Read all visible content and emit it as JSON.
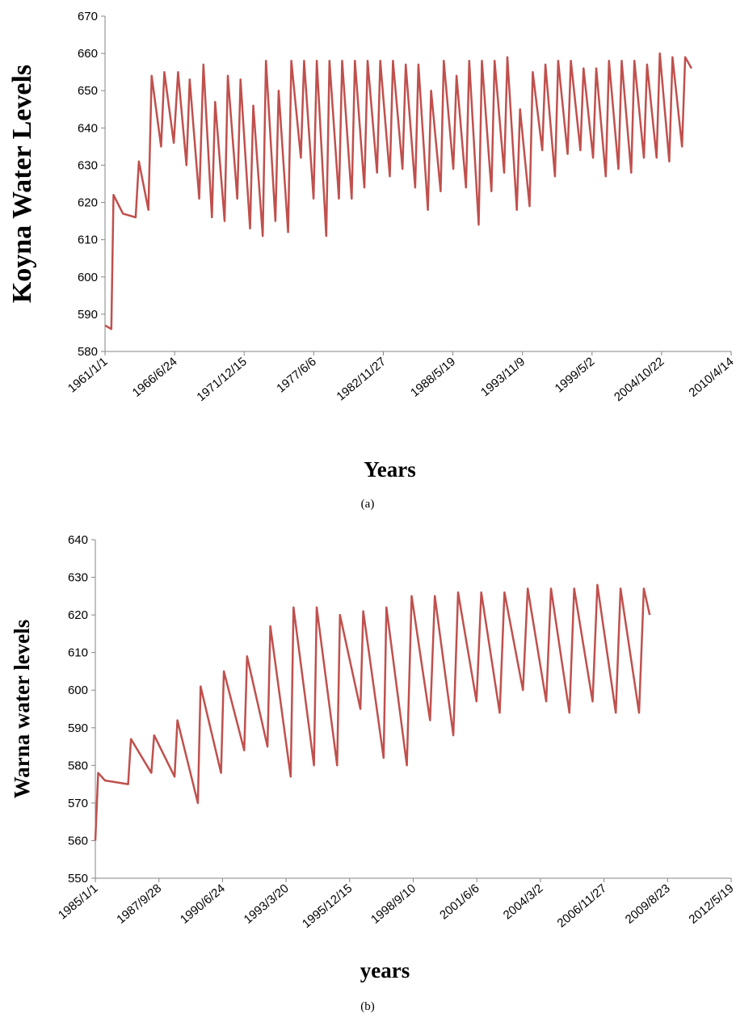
{
  "chart_data": [
    {
      "type": "line",
      "y_label": "Koyna Water Levels",
      "x_label": "Years",
      "caption": "(a)",
      "color": "#c0504d",
      "xlim": [
        "1961/1/1",
        "2010/4/14"
      ],
      "xticks": [
        "1961/1/1",
        "1966/6/24",
        "1971/12/15",
        "1977/6/6",
        "1982/11/27",
        "1988/5/19",
        "1993/11/9",
        "1999/5/2",
        "2004/10/22",
        "2010/4/14"
      ],
      "ylim": [
        580,
        670
      ],
      "yticks": [
        580,
        590,
        600,
        610,
        620,
        630,
        640,
        650,
        660,
        670
      ],
      "x": [
        "1961/1/1",
        "1961/7/1",
        "1961/9/1",
        "1962/6/1",
        "1963/6/1",
        "1963/9/1",
        "1964/6/1",
        "1964/9/1",
        "1965/6/1",
        "1965/9/1",
        "1966/6/1",
        "1966/10/1",
        "1967/6/1",
        "1967/9/1",
        "1968/6/1",
        "1968/10/1",
        "1969/6/1",
        "1969/9/1",
        "1970/6/1",
        "1970/9/1",
        "1971/6/1",
        "1971/9/1",
        "1972/6/1",
        "1972/9/1",
        "1973/6/1",
        "1973/9/1",
        "1974/6/1",
        "1974/9/1",
        "1975/6/1",
        "1975/9/1",
        "1976/6/1",
        "1976/9/1",
        "1977/6/1",
        "1977/9/1",
        "1978/6/1",
        "1978/9/1",
        "1979/6/1",
        "1979/9/1",
        "1980/6/1",
        "1980/9/1",
        "1981/6/1",
        "1981/9/1",
        "1982/6/1",
        "1982/9/1",
        "1983/6/1",
        "1983/9/1",
        "1984/6/1",
        "1984/9/1",
        "1985/6/1",
        "1985/9/1",
        "1986/6/1",
        "1986/9/1",
        "1987/6/1",
        "1987/9/1",
        "1988/6/1",
        "1988/9/1",
        "1989/6/1",
        "1989/9/1",
        "1990/6/1",
        "1990/9/1",
        "1991/6/1",
        "1991/9/1",
        "1992/6/1",
        "1992/9/1",
        "1993/6/1",
        "1993/9/1",
        "1994/6/1",
        "1994/9/1",
        "1995/6/1",
        "1995/9/1",
        "1996/6/1",
        "1996/9/1",
        "1997/6/1",
        "1997/9/1",
        "1998/6/1",
        "1998/9/1",
        "1999/6/1",
        "1999/9/1",
        "2000/6/1",
        "2000/9/1",
        "2001/6/1",
        "2001/9/1",
        "2002/6/1",
        "2002/9/1",
        "2003/6/1",
        "2003/9/1",
        "2004/6/1",
        "2004/9/1",
        "2005/6/1",
        "2005/9/1",
        "2006/6/1",
        "2006/9/1",
        "2007/3/1"
      ],
      "values": [
        587,
        586,
        622,
        617,
        616,
        631,
        618,
        654,
        635,
        655,
        636,
        655,
        630,
        653,
        621,
        657,
        616,
        647,
        615,
        654,
        621,
        653,
        613,
        646,
        611,
        658,
        615,
        650,
        612,
        658,
        632,
        658,
        621,
        658,
        611,
        658,
        621,
        658,
        621,
        658,
        624,
        658,
        628,
        658,
        627,
        658,
        629,
        657,
        624,
        657,
        618,
        650,
        623,
        658,
        629,
        654,
        624,
        658,
        614,
        658,
        623,
        658,
        628,
        659,
        618,
        645,
        619,
        655,
        634,
        657,
        627,
        658,
        633,
        658,
        634,
        656,
        632,
        656,
        627,
        658,
        629,
        658,
        628,
        658,
        632,
        657,
        632,
        660,
        631,
        659,
        635,
        659,
        656
      ]
    },
    {
      "type": "line",
      "y_label": "Warna water levels",
      "x_label": "years",
      "caption": "(b)",
      "color": "#c0504d",
      "xlim": [
        "1985/1/1",
        "2012/5/19"
      ],
      "xticks": [
        "1985/1/1",
        "1987/9/28",
        "1990/6/24",
        "1993/3/20",
        "1995/12/15",
        "1998/9/10",
        "2001/6/6",
        "2004/3/2",
        "2006/11/27",
        "2009/8/23",
        "2012/5/19"
      ],
      "ylim": [
        550,
        640
      ],
      "yticks": [
        550,
        560,
        570,
        580,
        590,
        600,
        610,
        620,
        630,
        640
      ],
      "x": [
        "1985/1/1",
        "1985/2/15",
        "1985/6/1",
        "1986/6/1",
        "1986/7/15",
        "1987/6/1",
        "1987/7/15",
        "1988/6/1",
        "1988/7/15",
        "1989/6/1",
        "1989/7/15",
        "1990/6/1",
        "1990/7/15",
        "1991/6/1",
        "1991/7/15",
        "1992/6/1",
        "1992/7/15",
        "1993/6/1",
        "1993/7/15",
        "1994/6/1",
        "1994/7/15",
        "1995/6/1",
        "1995/7/15",
        "1996/6/1",
        "1996/7/15",
        "1997/6/1",
        "1997/7/15",
        "1998/6/1",
        "1998/8/15",
        "1999/6/1",
        "1999/8/15",
        "2000/6/1",
        "2000/8/15",
        "2001/6/1",
        "2001/8/15",
        "2002/6/1",
        "2002/8/15",
        "2003/6/1",
        "2003/8/15",
        "2004/6/1",
        "2004/8/15",
        "2005/6/1",
        "2005/8/15",
        "2006/6/1",
        "2006/8/15",
        "2007/6/1",
        "2007/8/15",
        "2008/6/1",
        "2008/8/15",
        "2008/11/15"
      ],
      "values": [
        560,
        578,
        576,
        575,
        587,
        578,
        588,
        577,
        592,
        570,
        601,
        578,
        605,
        584,
        609,
        585,
        617,
        577,
        622,
        580,
        622,
        580,
        620,
        595,
        621,
        582,
        622,
        580,
        625,
        592,
        625,
        588,
        626,
        597,
        626,
        594,
        626,
        600,
        627,
        597,
        627,
        594,
        627,
        597,
        628,
        594,
        627,
        594,
        627,
        620
      ]
    }
  ]
}
